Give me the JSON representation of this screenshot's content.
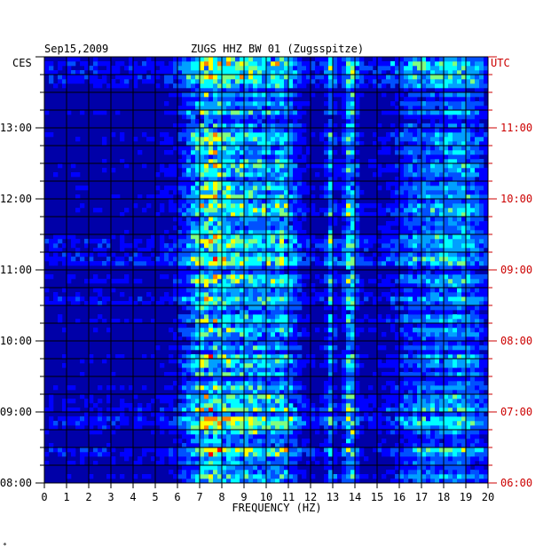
{
  "header": {
    "date": "Sep15,2009",
    "station": "ZUGS HHZ BW 01 (Zugsspitze)",
    "left_tz": "CES",
    "right_tz": "UTC"
  },
  "footer_mark": "*",
  "colors": {
    "background": "#0000a8",
    "grid": "#000000",
    "left_text": "#000000",
    "right_text": "#cc0000",
    "palette": [
      "#000080",
      "#0000b4",
      "#0000ff",
      "#0050ff",
      "#00a0ff",
      "#00ffff",
      "#80ff80",
      "#ffff00",
      "#ff8000",
      "#ff0000"
    ]
  },
  "chart_data": {
    "type": "heatmap",
    "title": "ZUGS HHZ BW 01 (Zugsspitze)",
    "date": "Sep15,2009",
    "xlabel": "FREQUENCY (HZ)",
    "x_ticks": [
      "0",
      "1",
      "2",
      "3",
      "4",
      "5",
      "6",
      "7",
      "8",
      "9",
      "10",
      "11",
      "12",
      "13",
      "14",
      "15",
      "16",
      "17",
      "18",
      "19",
      "20"
    ],
    "xlim": [
      0,
      20
    ],
    "left_ticks": [
      "13:00",
      "12:00",
      "11:00",
      "10:00",
      "09:00",
      "08:00"
    ],
    "right_ticks": [
      "11:00",
      "10:00",
      "09:00",
      "08:00",
      "07:00",
      "06:00"
    ],
    "time_range_ces": [
      "08:00",
      "14:00"
    ],
    "time_range_utc": [
      "06:00",
      "12:00"
    ],
    "energetic_bands_hz": [
      {
        "center": 7.5,
        "width": 1.2,
        "strength": 0.75
      },
      {
        "center": 9.3,
        "width": 0.9,
        "strength": 0.5
      },
      {
        "center": 10.7,
        "width": 0.8,
        "strength": 0.55
      },
      {
        "center": 12.9,
        "width": 0.2,
        "strength": 0.5
      },
      {
        "center": 13.8,
        "width": 0.3,
        "strength": 0.65
      },
      {
        "center": 17.2,
        "width": 1.5,
        "strength": 0.4
      },
      {
        "center": 19.0,
        "width": 1.0,
        "strength": 0.4
      }
    ],
    "active_periods_ces": [
      {
        "from": "13:35",
        "to": "13:55",
        "strength": 0.7
      },
      {
        "from": "11:05",
        "to": "11:25",
        "strength": 0.8
      },
      {
        "from": "10:30",
        "to": "10:45",
        "strength": 0.5
      },
      {
        "from": "08:45",
        "to": "09:10",
        "strength": 0.6
      },
      {
        "from": "08:15",
        "to": "08:35",
        "strength": 0.55
      }
    ],
    "grid": true
  }
}
